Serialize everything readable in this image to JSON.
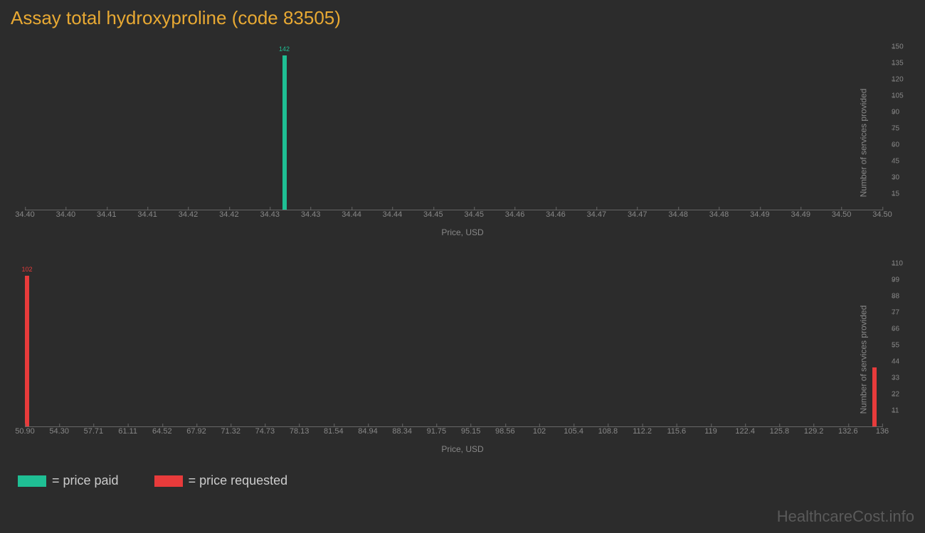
{
  "title": "Assay total hydroxyproline (code 83505)",
  "background_color": "#2c2c2c",
  "tick_color": "#888888",
  "axis_color": "#666666",
  "chart1": {
    "type": "bar",
    "bar_color": "#1fbf94",
    "bars": [
      {
        "x": 34.43,
        "y": 142,
        "label": "142"
      }
    ],
    "xlim": [
      34.4,
      34.5
    ],
    "x_ticks": [
      "34.40",
      "34.40",
      "34.41",
      "34.41",
      "34.42",
      "34.42",
      "34.43",
      "34.43",
      "34.44",
      "34.44",
      "34.45",
      "34.45",
      "34.46",
      "34.46",
      "34.47",
      "34.47",
      "34.48",
      "34.48",
      "34.49",
      "34.49",
      "34.50",
      "34.50"
    ],
    "ylim": [
      0,
      150
    ],
    "y_ticks": [
      15,
      30,
      45,
      60,
      75,
      90,
      105,
      120,
      135,
      150
    ],
    "xlabel": "Price, USD",
    "ylabel": "Number of services provided"
  },
  "chart2": {
    "type": "bar",
    "bar_color": "#e83b3b",
    "bars": [
      {
        "x": 50.9,
        "y": 102,
        "label": "102"
      },
      {
        "x": 135.0,
        "y": 40,
        "label": ""
      }
    ],
    "xlim": [
      50.9,
      136
    ],
    "x_ticks": [
      "50.90",
      "54.30",
      "57.71",
      "61.11",
      "64.52",
      "67.92",
      "71.32",
      "74.73",
      "78.13",
      "81.54",
      "84.94",
      "88.34",
      "91.75",
      "95.15",
      "98.56",
      "102",
      "105.4",
      "108.8",
      "112.2",
      "115.6",
      "119",
      "122.4",
      "125.8",
      "129.2",
      "132.6",
      "136"
    ],
    "ylim": [
      0,
      110
    ],
    "y_ticks": [
      11,
      22,
      33,
      44,
      55,
      66,
      77,
      88,
      99,
      110
    ],
    "xlabel": "Price, USD",
    "ylabel": "Number of services provided"
  },
  "legend": [
    {
      "color": "#1fbf94",
      "label": "= price paid"
    },
    {
      "color": "#e83b3b",
      "label": "= price requested"
    }
  ],
  "watermark": "HealthcareCost.info"
}
